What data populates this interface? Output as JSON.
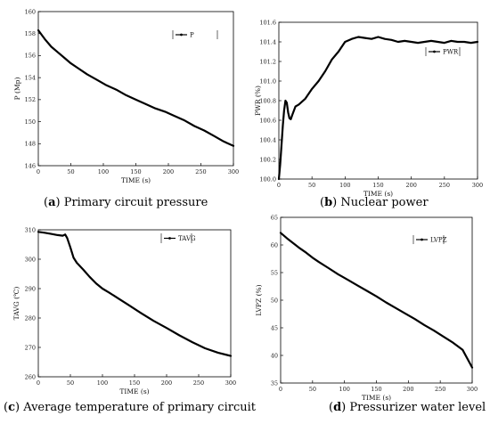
{
  "chart_data": [
    {
      "type": "line",
      "caption_letter": "a",
      "caption_text": "Primary circuit pressure",
      "xlabel": "TIME (s)",
      "ylabel": "P (Mp)",
      "xlim": [
        0,
        300
      ],
      "ylim": [
        146,
        160
      ],
      "xticks": [
        0,
        50,
        100,
        150,
        200,
        250,
        300
      ],
      "xtick_labels": [
        "0",
        "50",
        "100",
        "150",
        "200",
        "250",
        "300"
      ],
      "yticks": [
        146,
        148,
        150,
        152,
        154,
        156,
        158,
        160
      ],
      "ytick_labels": [
        "146",
        "148",
        "150",
        "152",
        "154",
        "156",
        "158",
        "160"
      ],
      "legend": "top-right",
      "series": [
        {
          "name": "P",
          "x": [
            0,
            5,
            10,
            20,
            30,
            40,
            50,
            60,
            75,
            90,
            105,
            120,
            135,
            150,
            165,
            180,
            195,
            210,
            225,
            240,
            255,
            270,
            285,
            300
          ],
          "y": [
            158.3,
            157.9,
            157.5,
            156.8,
            156.3,
            155.8,
            155.3,
            154.9,
            154.3,
            153.8,
            153.3,
            152.9,
            152.4,
            152.0,
            151.6,
            151.2,
            150.9,
            150.5,
            150.1,
            149.6,
            149.2,
            148.7,
            148.2,
            147.8
          ]
        }
      ]
    },
    {
      "type": "line",
      "caption_letter": "b",
      "caption_text": "Nuclear power",
      "xlabel": "TIME (s)",
      "ylabel": "PWR (%)",
      "xlim": [
        0,
        300
      ],
      "ylim": [
        100.0,
        101.6
      ],
      "xticks": [
        0,
        50,
        100,
        150,
        200,
        250,
        300
      ],
      "xtick_labels": [
        "0",
        "50",
        "100",
        "150",
        "200",
        "250",
        "300"
      ],
      "yticks": [
        100.0,
        100.2,
        100.4,
        100.6,
        100.8,
        101.0,
        101.2,
        101.4,
        101.6
      ],
      "ytick_labels": [
        "100.0",
        "100.2",
        "100.4",
        "100.6",
        "100.8",
        "101.0",
        "101.2",
        "101.4",
        "101.6"
      ],
      "legend": "top-right",
      "series": [
        {
          "name": "PWR",
          "x": [
            0,
            2,
            4,
            6,
            8,
            10,
            12,
            14,
            16,
            18,
            20,
            25,
            30,
            40,
            50,
            60,
            70,
            80,
            90,
            100,
            110,
            120,
            130,
            140,
            150,
            160,
            170,
            180,
            190,
            200,
            210,
            220,
            230,
            240,
            250,
            260,
            270,
            280,
            290,
            300
          ],
          "y": [
            100.0,
            100.15,
            100.35,
            100.55,
            100.7,
            100.8,
            100.78,
            100.68,
            100.62,
            100.61,
            100.65,
            100.74,
            100.76,
            100.82,
            100.92,
            101.0,
            101.1,
            101.22,
            101.3,
            101.4,
            101.43,
            101.45,
            101.44,
            101.43,
            101.45,
            101.43,
            101.42,
            101.4,
            101.41,
            101.4,
            101.39,
            101.4,
            101.41,
            101.4,
            101.39,
            101.41,
            101.4,
            101.4,
            101.39,
            101.4
          ]
        }
      ]
    },
    {
      "type": "line",
      "caption_letter": "c",
      "caption_text": "Average temperature of primary circuit",
      "xlabel": "TIME (s)",
      "ylabel": "TAVG (℃)",
      "xlim": [
        0,
        300
      ],
      "ylim": [
        260,
        310
      ],
      "xticks": [
        0,
        50,
        100,
        150,
        200,
        250,
        300
      ],
      "xtick_labels": [
        "0",
        "50",
        "100",
        "150",
        "200",
        "250",
        "300"
      ],
      "yticks": [
        260,
        270,
        280,
        290,
        300,
        310
      ],
      "ytick_labels": [
        "260",
        "270",
        "280",
        "290",
        "300",
        "310"
      ],
      "legend": "top-right",
      "series": [
        {
          "name": "TAVG",
          "x": [
            0,
            10,
            20,
            30,
            38,
            42,
            45,
            50,
            55,
            60,
            70,
            80,
            90,
            100,
            110,
            125,
            140,
            160,
            180,
            200,
            220,
            240,
            260,
            280,
            300
          ],
          "y": [
            309.3,
            309.0,
            308.6,
            308.2,
            308.0,
            308.4,
            307.2,
            304.0,
            300.5,
            298.8,
            296.5,
            294.0,
            291.8,
            290.0,
            288.7,
            286.6,
            284.5,
            281.7,
            279.0,
            276.6,
            274.1,
            271.8,
            269.7,
            268.2,
            267.1
          ]
        }
      ]
    },
    {
      "type": "line",
      "caption_letter": "d",
      "caption_text": "Pressurizer water level",
      "xlabel": "TIME (s)",
      "ylabel": "LVPZ (%)",
      "xlim": [
        0,
        300
      ],
      "ylim": [
        35,
        65
      ],
      "xticks": [
        0,
        50,
        100,
        150,
        200,
        250,
        300
      ],
      "xtick_labels": [
        "0",
        "50",
        "100",
        "150",
        "200",
        "250",
        "300"
      ],
      "yticks": [
        35,
        40,
        45,
        50,
        55,
        60,
        65
      ],
      "ytick_labels": [
        "35",
        "40",
        "45",
        "50",
        "55",
        "60",
        "65"
      ],
      "legend": "top-right",
      "series": [
        {
          "name": "LVPZ",
          "x": [
            0,
            10,
            20,
            30,
            40,
            50,
            60,
            75,
            90,
            105,
            120,
            135,
            150,
            165,
            180,
            195,
            210,
            225,
            240,
            255,
            270,
            285,
            300
          ],
          "y": [
            62.2,
            61.2,
            60.3,
            59.4,
            58.6,
            57.7,
            56.9,
            55.8,
            54.7,
            53.7,
            52.7,
            51.7,
            50.7,
            49.6,
            48.6,
            47.6,
            46.6,
            45.5,
            44.5,
            43.4,
            42.3,
            41.0,
            37.8
          ]
        }
      ]
    }
  ]
}
